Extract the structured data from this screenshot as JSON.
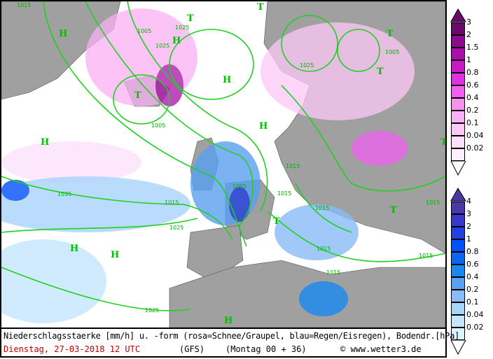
{
  "footer": {
    "description": "Niederschlagsstaerke [mm/h] u. -form (rosa=Schnee/Graupel, blau=Regen/Eisregen), Bodendr.[hPa]",
    "date": "Dienstag, 27-03-2018   12 UTC",
    "model": "(GFS)",
    "run": "(Montag 00 + 36)",
    "copyright": "© www.wetter3.de"
  },
  "legend_snow": {
    "labels": [
      "3",
      "2",
      "1.5",
      "1",
      "0.8",
      "0.6",
      "0.4",
      "0.2",
      "0.1",
      "0.04",
      "0.02"
    ],
    "colors": [
      "#6a0a6a",
      "#8c0a8c",
      "#a810a8",
      "#c818c8",
      "#e030e0",
      "#f060f0",
      "#f890f0",
      "#fab0f4",
      "#fcc8f8",
      "#fde0fb",
      "#fff0fd"
    ]
  },
  "legend_rain": {
    "labels": [
      "4",
      "3",
      "2",
      "1",
      "0.8",
      "0.6",
      "0.4",
      "0.2",
      "0.1",
      "0.04",
      "0.02"
    ],
    "colors": [
      "#4838a8",
      "#3838c8",
      "#2040e0",
      "#0050ff",
      "#0a68f0",
      "#1888f0",
      "#5aa0f0",
      "#88bcf8",
      "#a8d4fc",
      "#c4e6fc",
      "#dcf4ff"
    ]
  },
  "map": {
    "land_color": "#a0a0a0",
    "isobar_color": "#20d020",
    "isobar_labels": [
      "1015",
      "1025",
      "1005",
      "1025",
      "1005",
      "1035",
      "1015",
      "1025",
      "1005",
      "1015",
      "1015",
      "1015",
      "1015",
      "1015",
      "1015",
      "1025",
      "1015",
      "1005",
      "1025"
    ],
    "pressure_centers": [
      "H",
      "T",
      "H",
      "T",
      "H",
      "T",
      "H",
      "T",
      "T",
      "T",
      "H",
      "H",
      "H",
      "T",
      "T",
      "H"
    ]
  }
}
